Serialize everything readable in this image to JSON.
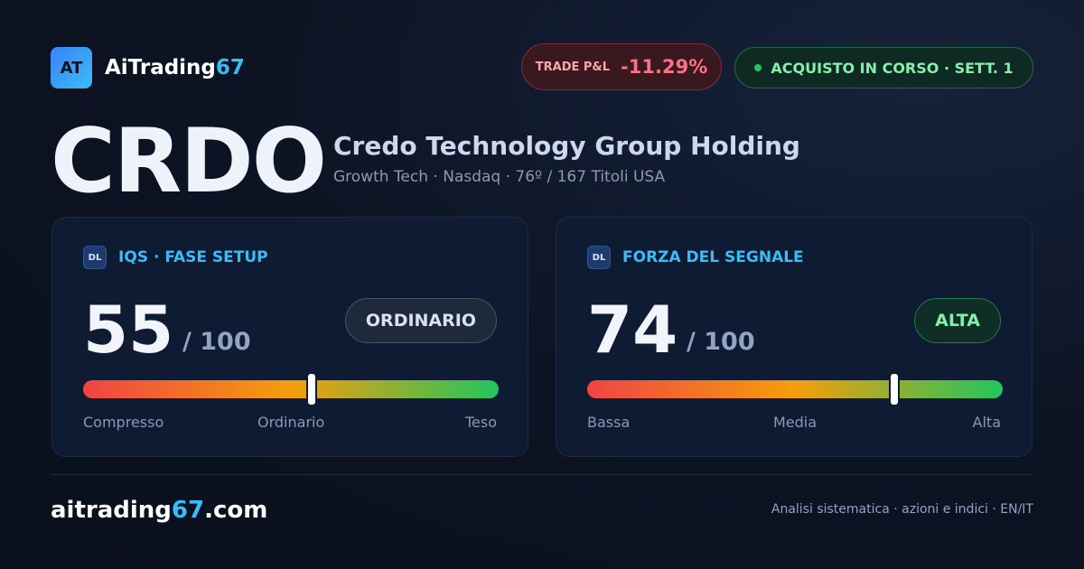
{
  "header": {
    "logo": "AT",
    "brand": "AiTrading",
    "brand_accent": "67",
    "pnl_label": "TRADE P&L",
    "pnl_value": "-11.29%",
    "status": "ACQUISTO IN CORSO · SETT. 1"
  },
  "ticker": {
    "symbol": "CRDO",
    "name": "Credo Technology Group Holding",
    "subtitle": "Growth Tech · Nasdaq · 76º / 167 Titoli USA"
  },
  "cards": [
    {
      "badge": "DL",
      "title": "IQS · FASE SETUP",
      "score": 55,
      "max": {
        "value": 100,
        "label": "/ 100"
      },
      "pill": "ORDINARIO",
      "scale_labels": [
        "Compresso",
        "Ordinario",
        "Teso"
      ]
    },
    {
      "badge": "DL",
      "title": "FORZA DEL SEGNALE",
      "score": 74,
      "max": {
        "value": 100,
        "label": "/ 100"
      },
      "pill": "ALTA",
      "scale_labels": [
        "Bassa",
        "Media",
        "Alta"
      ]
    }
  ],
  "footer": {
    "domain": "aitrading",
    "domain_accent": "67",
    "domain_tld": ".com",
    "note": "Analisi sistematica · azioni e indici · EN/IT"
  }
}
